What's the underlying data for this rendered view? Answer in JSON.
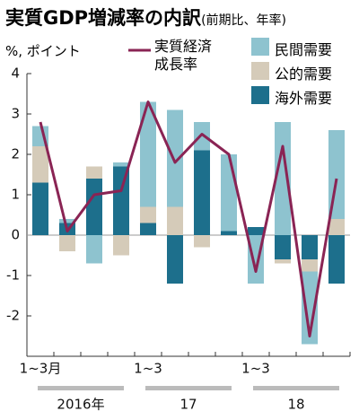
{
  "chart_data": {
    "type": "bar",
    "stacked": true,
    "title": "実質GDP増減率の内訳",
    "subtitle": "(前期比、年率)",
    "y_label": "%, ポイント",
    "categories": [
      "1~3月",
      null,
      null,
      null,
      "1~3",
      null,
      null,
      null,
      "1~3",
      null,
      null,
      null
    ],
    "year_labels": [
      "2016年",
      "17",
      "18"
    ],
    "series": [
      {
        "name": "民間需要",
        "color": "#8ec3cf",
        "values": [
          0.5,
          0.1,
          -0.7,
          0.1,
          2.6,
          2.4,
          0.7,
          1.9,
          -1.2,
          2.8,
          -1.8,
          2.2
        ]
      },
      {
        "name": "公的需要",
        "color": "#d5cbb9",
        "values": [
          0.9,
          -0.4,
          0.3,
          -0.5,
          0.4,
          0.7,
          -0.3,
          0,
          0,
          -0.1,
          -0.3,
          0.4
        ]
      },
      {
        "name": "海外需要",
        "color": "#1d6f8c",
        "values": [
          1.3,
          0.3,
          1.4,
          1.7,
          0.3,
          -1.2,
          2.1,
          0.1,
          0.2,
          -0.6,
          -0.6,
          -1.2
        ]
      },
      {
        "name": "実質経済成長率",
        "type": "line",
        "color": "#8a2454",
        "values": [
          2.8,
          0.1,
          1.0,
          1.1,
          3.3,
          1.8,
          2.5,
          2.0,
          -0.9,
          2.2,
          -2.5,
          1.4
        ]
      }
    ],
    "ylim": [
      -3,
      4
    ],
    "yticks": [
      -2,
      -1,
      0,
      1,
      2,
      3,
      4
    ]
  }
}
